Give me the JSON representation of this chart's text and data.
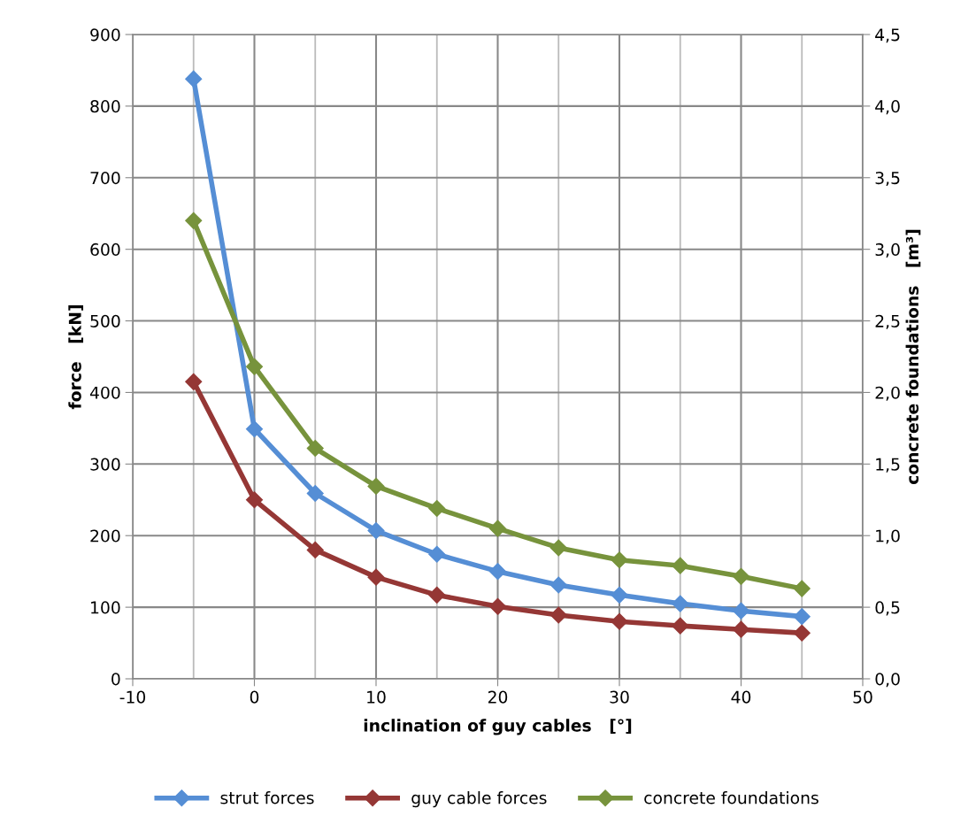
{
  "chart_data": {
    "type": "line",
    "xlabel": "inclination of guy cables   [°]",
    "ylabel": "force   [kN]",
    "y2label": "concrete foundations   [m³]",
    "x": [
      -5,
      0,
      5,
      10,
      15,
      20,
      25,
      30,
      35,
      40,
      45
    ],
    "series": [
      {
        "name": "strut forces",
        "color": "#558ed5",
        "values": [
          838,
          349,
          259,
          207,
          174,
          150,
          131,
          117,
          105,
          95,
          87
        ]
      },
      {
        "name": "guy cable forces",
        "color": "#953735",
        "values": [
          415,
          250,
          180,
          142,
          117,
          101,
          89,
          80,
          74,
          69,
          64
        ]
      },
      {
        "name": "concrete foundations",
        "color": "#77933c",
        "axis": "y2",
        "values": [
          3.2,
          2.18,
          1.61,
          1.345,
          1.19,
          1.05,
          0.915,
          0.83,
          0.79,
          0.715,
          0.63
        ]
      }
    ],
    "xlim": [
      -10,
      50
    ],
    "xticks": [
      -10,
      {
        "value": -5,
        "label": null
      },
      0,
      {
        "value": 5,
        "label": null
      },
      10,
      {
        "value": 15,
        "label": null
      },
      20,
      {
        "value": 25,
        "label": null
      },
      30,
      {
        "value": 35,
        "label": null
      },
      40,
      {
        "value": 45,
        "label": null
      },
      50
    ],
    "ylim": [
      0,
      900
    ],
    "yticks": [
      0,
      100,
      200,
      300,
      400,
      500,
      600,
      700,
      800,
      900
    ],
    "y2lim": [
      0,
      4.5
    ],
    "y2ticks": [
      {
        "value": 0,
        "label": "0,0"
      },
      {
        "value": 0.5,
        "label": "0,5"
      },
      {
        "value": 1,
        "label": "1,0"
      },
      {
        "value": 1.5,
        "label": "1,5"
      },
      {
        "value": 2,
        "label": "2,0"
      },
      {
        "value": 2.5,
        "label": "2,5"
      },
      {
        "value": 3,
        "label": "3,0"
      },
      {
        "value": 3.5,
        "label": "3,5"
      },
      {
        "value": 4,
        "label": "4,0"
      },
      {
        "value": 4.5,
        "label": "4,5"
      }
    ],
    "grid": true,
    "legend": "bottom",
    "marker": "diamond",
    "line_style": "solid"
  }
}
